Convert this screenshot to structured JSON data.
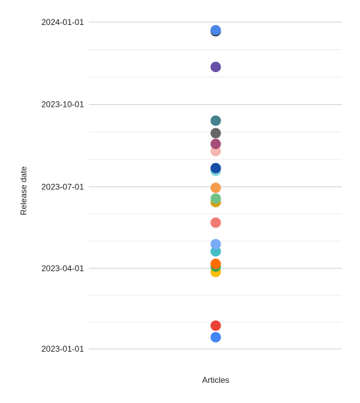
{
  "chart_data": {
    "type": "scatter",
    "xlabel": "Articles",
    "ylabel": "Release date",
    "y_axis_type": "date",
    "ylim": [
      "2023-01-01",
      "2024-01-01"
    ],
    "y_ticks": [
      "2023-01-01",
      "2023-04-01",
      "2023-07-01",
      "2023-10-01",
      "2024-01-01"
    ],
    "grid": true,
    "legend": "none",
    "points": [
      {
        "y": "2023-01-14",
        "color": "#4285f4"
      },
      {
        "y": "2023-01-27",
        "color": "#ea4335"
      },
      {
        "y": "2023-03-28",
        "color": "#fbbc04"
      },
      {
        "y": "2023-04-03",
        "color": "#34a853"
      },
      {
        "y": "2023-04-06",
        "color": "#ff6d01"
      },
      {
        "y": "2023-04-20",
        "color": "#46bdc6"
      },
      {
        "y": "2023-04-28",
        "color": "#7baaf7"
      },
      {
        "y": "2023-05-22",
        "color": "#f07b72"
      },
      {
        "y": "2023-06-14",
        "color": "#d4a010"
      },
      {
        "y": "2023-06-18",
        "color": "#71c287"
      },
      {
        "y": "2023-06-30",
        "color": "#f89b4e"
      },
      {
        "y": "2023-07-19",
        "color": "#7ed1d7"
      },
      {
        "y": "2023-07-22",
        "color": "#174ea6"
      },
      {
        "y": "2023-08-10",
        "color": "#f4b6b2"
      },
      {
        "y": "2023-08-18",
        "color": "#a64d79"
      },
      {
        "y": "2023-08-30",
        "color": "#666666"
      },
      {
        "y": "2023-09-13",
        "color": "#45818e"
      },
      {
        "y": "2023-11-12",
        "color": "#674ea7"
      },
      {
        "y": "2023-12-22",
        "color": "#1c1c1c"
      },
      {
        "y": "2023-12-23",
        "color": "#4a86e8"
      }
    ]
  }
}
